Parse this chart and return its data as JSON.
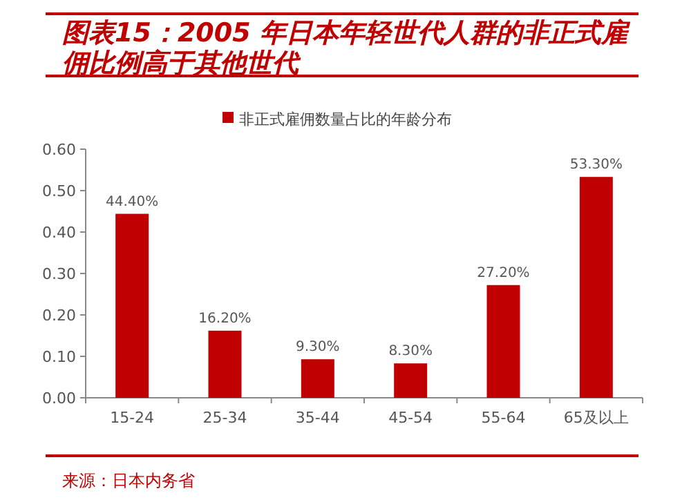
{
  "chart_data": {
    "type": "bar",
    "title": "图表15：2005 年日本年轻世代人群的非正式雇佣比例高于其他世代",
    "categories": [
      "15-24",
      "25-34",
      "35-44",
      "45-54",
      "55-64",
      "65及以上"
    ],
    "series": [
      {
        "name": "非正式雇佣数量占比的年龄分布",
        "color": "#c00000",
        "values": [
          0.444,
          0.162,
          0.093,
          0.083,
          0.272,
          0.533
        ],
        "value_labels": [
          "44.40%",
          "16.20%",
          "9.30%",
          "8.30%",
          "27.20%",
          "53.30%"
        ]
      }
    ],
    "ylim": [
      0,
      0.6
    ],
    "yticks": [
      {
        "value": 0,
        "label": "0.00"
      },
      {
        "value": 0.1,
        "label": "0.10"
      },
      {
        "value": 0.2,
        "label": "0.20"
      },
      {
        "value": 0.3,
        "label": "0.30"
      },
      {
        "value": 0.4,
        "label": "0.40"
      },
      {
        "value": 0.5,
        "label": "0.50"
      },
      {
        "value": 0.6,
        "label": "0.60"
      }
    ],
    "legend": "top",
    "grid": false,
    "annotations": [
      "来源：日本内务省"
    ]
  }
}
